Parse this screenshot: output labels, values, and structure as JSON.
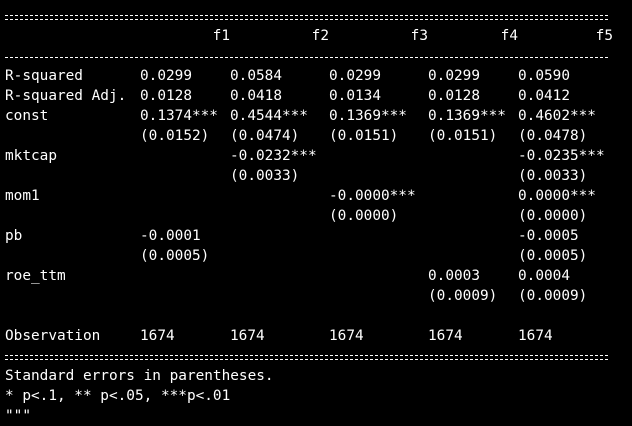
{
  "table": {
    "columns": [
      "f1",
      "f2",
      "f3",
      "f4",
      "f5"
    ],
    "rows": [
      {
        "label": "R-squared",
        "cells": [
          "0.0299",
          "0.0584",
          "0.0299",
          "0.0299",
          "0.0590"
        ]
      },
      {
        "label": "R-squared Adj.",
        "cells": [
          "0.0128",
          "0.0418",
          "0.0134",
          "0.0128",
          "0.0412"
        ]
      },
      {
        "label": "const",
        "cells": [
          "0.1374***",
          "0.4544***",
          "0.1369***",
          "0.1369***",
          "0.4602***"
        ]
      },
      {
        "label": "",
        "cells": [
          "(0.0152)",
          "(0.0474)",
          "(0.0151)",
          "(0.0151)",
          "(0.0478)"
        ]
      },
      {
        "label": "mktcap",
        "cells": [
          "",
          "-0.0232***",
          "",
          "",
          "-0.0235***"
        ]
      },
      {
        "label": "",
        "cells": [
          "",
          "(0.0033)",
          "",
          "",
          "(0.0033)"
        ]
      },
      {
        "label": "mom1",
        "cells": [
          "",
          "",
          "-0.0000***",
          "",
          "0.0000***"
        ]
      },
      {
        "label": "",
        "cells": [
          "",
          "",
          "(0.0000)",
          "",
          "(0.0000)"
        ]
      },
      {
        "label": "pb",
        "cells": [
          "-0.0001",
          "",
          "",
          "",
          "-0.0005"
        ]
      },
      {
        "label": "",
        "cells": [
          "(0.0005)",
          "",
          "",
          "",
          "(0.0005)"
        ]
      },
      {
        "label": "roe_ttm",
        "cells": [
          "",
          "",
          "",
          "0.0003",
          "0.0004"
        ]
      },
      {
        "label": "",
        "cells": [
          "",
          "",
          "",
          "(0.0009)",
          "(0.0009)"
        ]
      }
    ],
    "observation": {
      "label": "Observation",
      "cells": [
        "1674",
        "1674",
        "1674",
        "1674",
        "1674"
      ]
    }
  },
  "footer": {
    "line1": "Standard errors in parentheses.",
    "line2": "* p<.1, ** p<.05, ***p<.01",
    "line3": "\"\"\""
  }
}
